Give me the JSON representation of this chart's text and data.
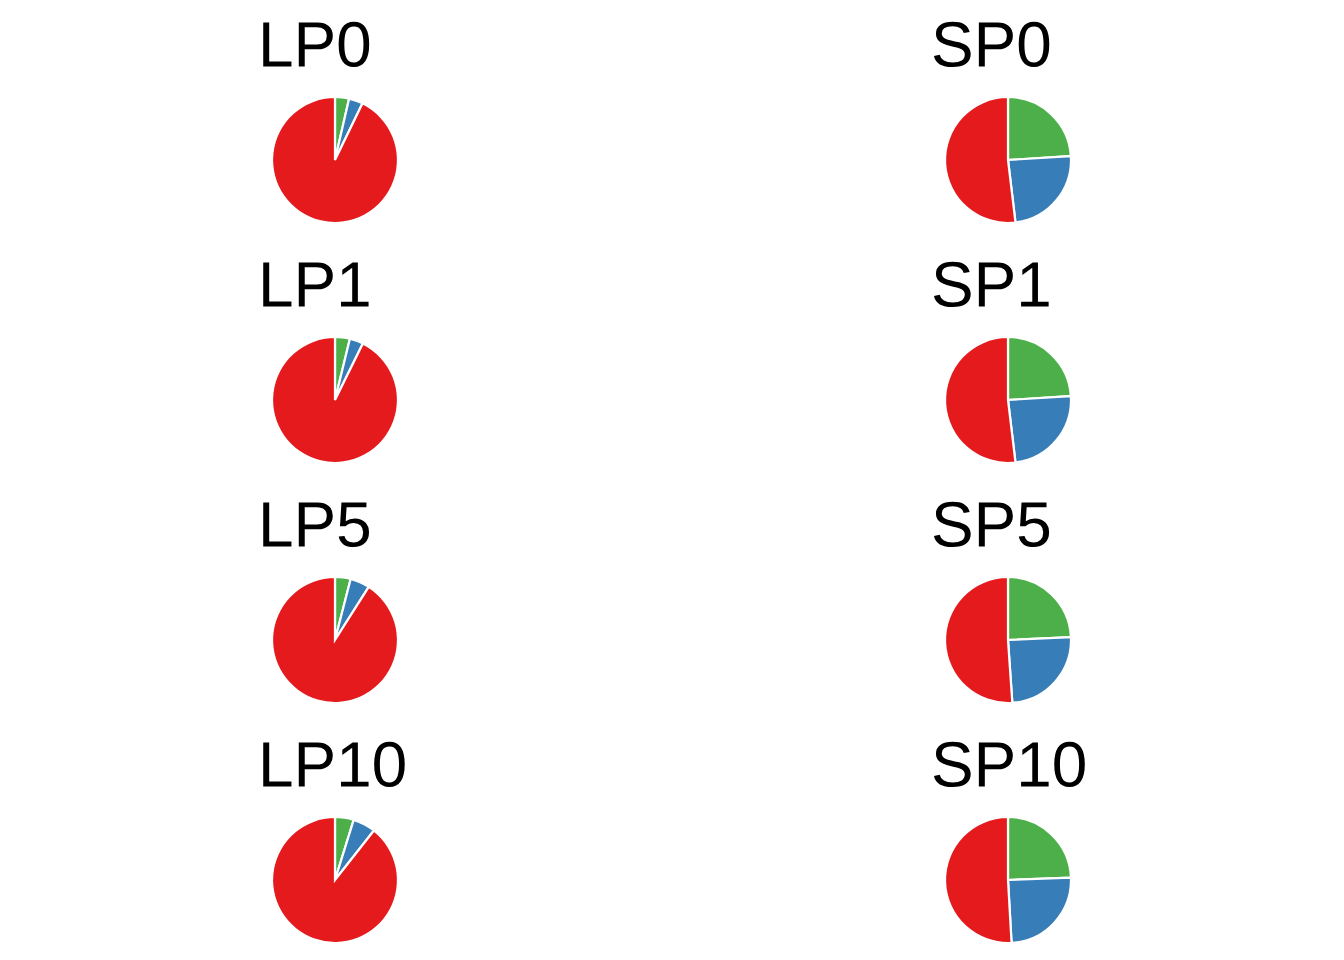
{
  "chart_data": [
    {
      "type": "pie",
      "title": "LP0",
      "categories": [
        null,
        null,
        null
      ],
      "values": [
        3.6,
        3.6,
        92.8
      ],
      "colors": [
        "#4daf4a",
        "#377eb8",
        "#e41a1c"
      ]
    },
    {
      "type": "pie",
      "title": "SP0",
      "categories": [
        null,
        null,
        null
      ],
      "values": [
        24.0,
        24.1,
        51.9
      ],
      "colors": [
        "#4daf4a",
        "#377eb8",
        "#e41a1c"
      ]
    },
    {
      "type": "pie",
      "title": "LP1",
      "categories": [
        null,
        null,
        null
      ],
      "values": [
        3.8,
        3.5,
        92.7
      ],
      "colors": [
        "#4daf4a",
        "#377eb8",
        "#e41a1c"
      ]
    },
    {
      "type": "pie",
      "title": "SP1",
      "categories": [
        null,
        null,
        null
      ],
      "values": [
        24.0,
        24.1,
        51.9
      ],
      "colors": [
        "#4daf4a",
        "#377eb8",
        "#e41a1c"
      ]
    },
    {
      "type": "pie",
      "title": "LP5",
      "categories": [
        null,
        null,
        null
      ],
      "values": [
        4.0,
        5.0,
        91.0
      ],
      "colors": [
        "#4daf4a",
        "#377eb8",
        "#e41a1c"
      ]
    },
    {
      "type": "pie",
      "title": "SP5",
      "categories": [
        null,
        null,
        null
      ],
      "values": [
        24.3,
        24.6,
        51.1
      ],
      "colors": [
        "#4daf4a",
        "#377eb8",
        "#e41a1c"
      ]
    },
    {
      "type": "pie",
      "title": "LP10",
      "categories": [
        null,
        null,
        null
      ],
      "values": [
        4.8,
        5.8,
        89.4
      ],
      "colors": [
        "#4daf4a",
        "#377eb8",
        "#e41a1c"
      ]
    },
    {
      "type": "pie",
      "title": "SP10",
      "categories": [
        null,
        null,
        null
      ],
      "values": [
        24.4,
        24.7,
        50.9
      ],
      "colors": [
        "#4daf4a",
        "#377eb8",
        "#e41a1c"
      ]
    }
  ]
}
